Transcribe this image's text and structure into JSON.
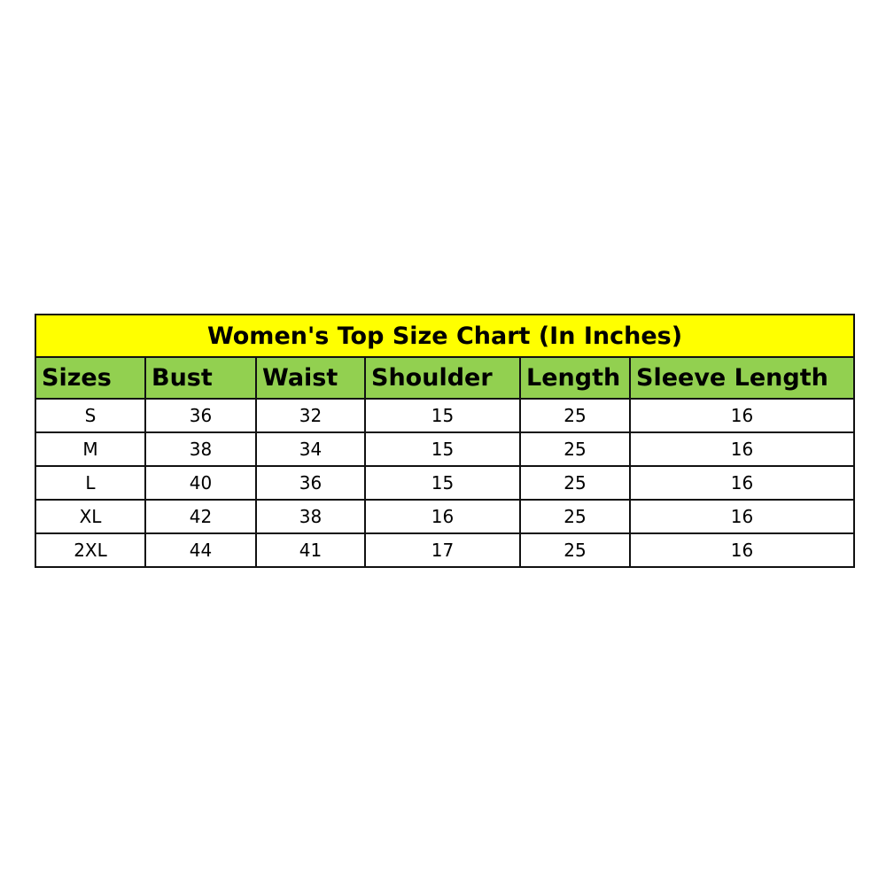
{
  "title": "Women's Top Size Chart (In Inches)",
  "colors": {
    "title_bg": "#ffff00",
    "header_bg": "#92d050",
    "border": "#111111"
  },
  "columns": [
    "Sizes",
    "Bust",
    "Waist",
    "Shoulder",
    "Length",
    "Sleeve Length"
  ],
  "rows": [
    [
      "S",
      "36",
      "32",
      "15",
      "25",
      "16"
    ],
    [
      "M",
      "38",
      "34",
      "15",
      "25",
      "16"
    ],
    [
      "L",
      "40",
      "36",
      "15",
      "25",
      "16"
    ],
    [
      "XL",
      "42",
      "38",
      "16",
      "25",
      "16"
    ],
    [
      "2XL",
      "44",
      "41",
      "17",
      "25",
      "16"
    ]
  ]
}
